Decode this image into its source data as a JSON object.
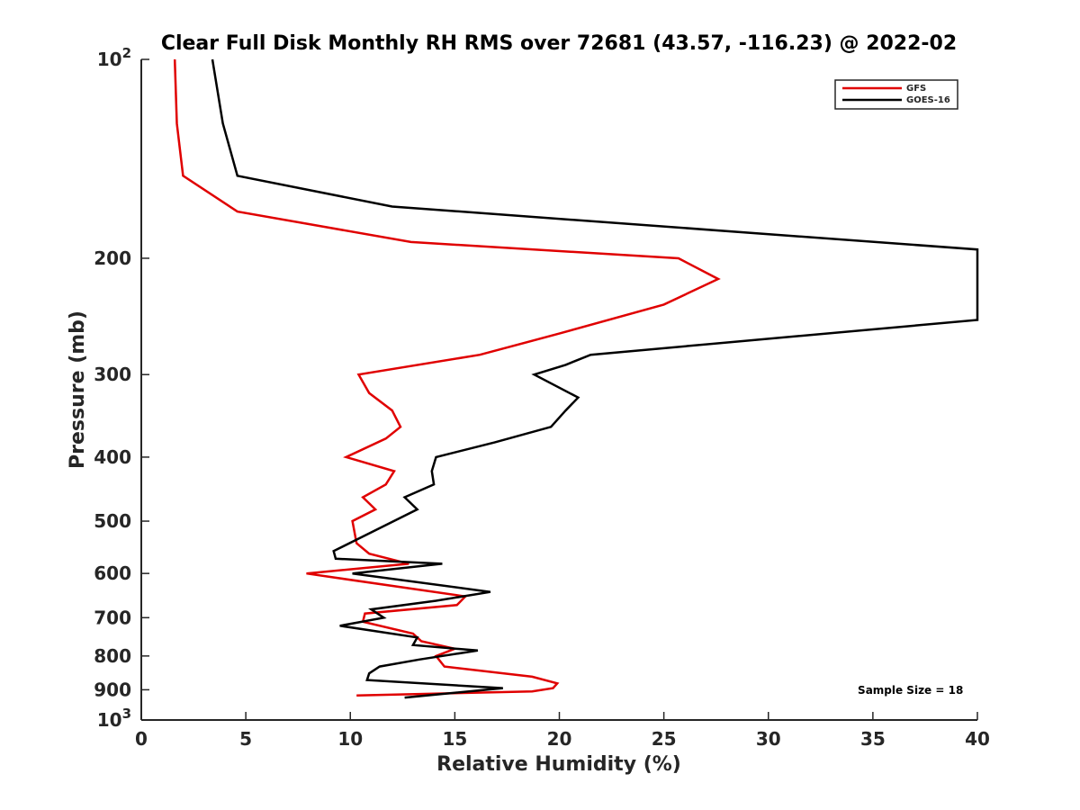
{
  "chart_data": {
    "type": "line",
    "title": "Clear Full Disk Monthly RH RMS over 72681 (43.57, -116.23) @ 2022-02",
    "xlabel": "Relative Humidity (%)",
    "ylabel": "Pressure (mb)",
    "xlim": [
      0,
      40
    ],
    "ylim": [
      100,
      1000
    ],
    "y_scale": "log",
    "y_reversed": true,
    "x_ticks": [
      0,
      5,
      10,
      15,
      20,
      25,
      30,
      35,
      40
    ],
    "x_tick_labels": [
      "0",
      "5",
      "10",
      "15",
      "20",
      "25",
      "30",
      "35",
      "40"
    ],
    "y_ticks": [
      100,
      200,
      300,
      400,
      500,
      600,
      700,
      800,
      900,
      1000
    ],
    "y_tick_labels": [
      {
        "base": "10",
        "exp": "2"
      },
      {
        "base": "200",
        "exp": ""
      },
      {
        "base": "300",
        "exp": ""
      },
      {
        "base": "400",
        "exp": ""
      },
      {
        "base": "500",
        "exp": ""
      },
      {
        "base": "600",
        "exp": ""
      },
      {
        "base": "700",
        "exp": ""
      },
      {
        "base": "800",
        "exp": ""
      },
      {
        "base": "900",
        "exp": ""
      },
      {
        "base": "10",
        "exp": "3"
      }
    ],
    "legend_position": "top-right",
    "series": [
      {
        "name": "GFS",
        "color": "#e00000",
        "points": [
          {
            "x": 1.6,
            "y": 100
          },
          {
            "x": 1.7,
            "y": 125
          },
          {
            "x": 2.0,
            "y": 150
          },
          {
            "x": 4.6,
            "y": 170
          },
          {
            "x": 12.9,
            "y": 189
          },
          {
            "x": 25.7,
            "y": 200
          },
          {
            "x": 27.6,
            "y": 215
          },
          {
            "x": 25.0,
            "y": 235
          },
          {
            "x": 20.0,
            "y": 260
          },
          {
            "x": 16.2,
            "y": 280
          },
          {
            "x": 10.4,
            "y": 300
          },
          {
            "x": 10.9,
            "y": 320
          },
          {
            "x": 12.0,
            "y": 340
          },
          {
            "x": 12.4,
            "y": 360
          },
          {
            "x": 11.7,
            "y": 375
          },
          {
            "x": 9.8,
            "y": 400
          },
          {
            "x": 12.1,
            "y": 420
          },
          {
            "x": 11.7,
            "y": 440
          },
          {
            "x": 10.6,
            "y": 460
          },
          {
            "x": 11.2,
            "y": 480
          },
          {
            "x": 10.1,
            "y": 500
          },
          {
            "x": 10.3,
            "y": 540
          },
          {
            "x": 10.9,
            "y": 560
          },
          {
            "x": 12.8,
            "y": 580
          },
          {
            "x": 7.9,
            "y": 600
          },
          {
            "x": 15.5,
            "y": 650
          },
          {
            "x": 15.1,
            "y": 670
          },
          {
            "x": 10.7,
            "y": 690
          },
          {
            "x": 10.6,
            "y": 710
          },
          {
            "x": 13.0,
            "y": 740
          },
          {
            "x": 13.4,
            "y": 760
          },
          {
            "x": 15.0,
            "y": 780
          },
          {
            "x": 14.1,
            "y": 800
          },
          {
            "x": 14.5,
            "y": 830
          },
          {
            "x": 18.7,
            "y": 860
          },
          {
            "x": 19.9,
            "y": 880
          },
          {
            "x": 19.7,
            "y": 895
          },
          {
            "x": 18.7,
            "y": 905
          },
          {
            "x": 10.3,
            "y": 918
          }
        ]
      },
      {
        "name": "GOES-16",
        "color": "#000000",
        "points": [
          {
            "x": 3.4,
            "y": 100
          },
          {
            "x": 3.9,
            "y": 125
          },
          {
            "x": 4.6,
            "y": 150
          },
          {
            "x": 12.0,
            "y": 167
          },
          {
            "x": 40.0,
            "y": 194
          },
          {
            "x": 40.0,
            "y": 248
          },
          {
            "x": 21.5,
            "y": 280
          },
          {
            "x": 20.3,
            "y": 290
          },
          {
            "x": 18.8,
            "y": 300
          },
          {
            "x": 20.9,
            "y": 325
          },
          {
            "x": 20.3,
            "y": 340
          },
          {
            "x": 19.6,
            "y": 360
          },
          {
            "x": 16.9,
            "y": 380
          },
          {
            "x": 14.1,
            "y": 400
          },
          {
            "x": 13.9,
            "y": 420
          },
          {
            "x": 14.0,
            "y": 440
          },
          {
            "x": 12.6,
            "y": 460
          },
          {
            "x": 13.2,
            "y": 480
          },
          {
            "x": 11.0,
            "y": 520
          },
          {
            "x": 9.2,
            "y": 555
          },
          {
            "x": 9.3,
            "y": 570
          },
          {
            "x": 14.4,
            "y": 580
          },
          {
            "x": 10.1,
            "y": 600
          },
          {
            "x": 16.7,
            "y": 640
          },
          {
            "x": 14.1,
            "y": 660
          },
          {
            "x": 11.0,
            "y": 680
          },
          {
            "x": 11.6,
            "y": 700
          },
          {
            "x": 9.5,
            "y": 720
          },
          {
            "x": 13.2,
            "y": 750
          },
          {
            "x": 13.0,
            "y": 770
          },
          {
            "x": 16.1,
            "y": 785
          },
          {
            "x": 13.3,
            "y": 810
          },
          {
            "x": 11.4,
            "y": 830
          },
          {
            "x": 10.9,
            "y": 850
          },
          {
            "x": 10.8,
            "y": 870
          },
          {
            "x": 17.3,
            "y": 895
          },
          {
            "x": 12.6,
            "y": 925
          }
        ]
      }
    ],
    "annotations": [
      {
        "text": "Sample Size = 18",
        "x": 36.8,
        "y": 902
      }
    ]
  }
}
